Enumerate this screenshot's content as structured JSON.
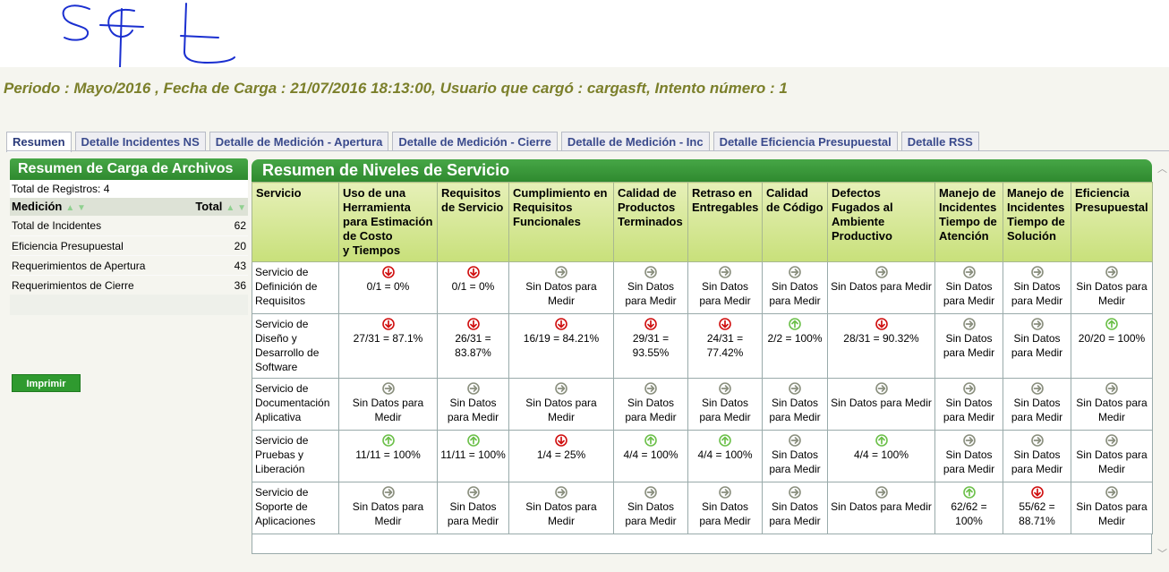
{
  "header": {
    "periodo_text": "Periodo : Mayo/2016 , Fecha de Carga : 21/07/2016 18:13:00, Usuario que cargó : cargasft, Intento número : 1"
  },
  "tabs": [
    {
      "label": "Resumen",
      "active": true
    },
    {
      "label": "Detalle Incidentes NS"
    },
    {
      "label": "Detalle de Medición - Apertura"
    },
    {
      "label": "Detalle de Medición - Cierre"
    },
    {
      "label": "Detalle de Medición - Inc"
    },
    {
      "label": "Detalle Eficiencia Presupuestal"
    },
    {
      "label": "Detalle RSS"
    }
  ],
  "left_panel": {
    "title": "Resumen de Carga de Archivos",
    "total_registros": "Total de Registros: 4",
    "col_medicion": "Medición",
    "col_total": "Total",
    "rows": [
      {
        "name": "Total de Incidentes",
        "total": "62"
      },
      {
        "name": "Eficiencia Presupuestal",
        "total": "20"
      },
      {
        "name": "Requerimientos de Apertura",
        "total": "43"
      },
      {
        "name": "Requerimientos de Cierre",
        "total": "36"
      }
    ],
    "print_label": "Imprimir"
  },
  "main_panel": {
    "title": "Resumen de Niveles de Servicio",
    "columns": [
      "Servicio",
      "Uso de una Herramienta para Estimación de Costo\ny Tiempos",
      "Requisitos de Servicio",
      "Cumplimiento en Requisitos Funcionales",
      "Calidad de Productos Terminados",
      "Retraso en Entregables",
      "Calidad de Código",
      "Defectos Fugados al Ambiente Productivo",
      "Manejo de Incidentes Tiempo de Atención",
      "Manejo de Incidentes Tiempo de Solución",
      "Eficiencia Presupuestal"
    ],
    "rows": [
      {
        "service": "Servicio de Definición de Requisitos",
        "cells": [
          {
            "icon": "red-down",
            "text": "0/1 = 0%"
          },
          {
            "icon": "red-down",
            "text": "0/1 = 0%"
          },
          {
            "icon": "gray-right",
            "text": "Sin Datos para Medir"
          },
          {
            "icon": "gray-right",
            "text": "Sin Datos para Medir"
          },
          {
            "icon": "gray-right",
            "text": "Sin Datos para Medir"
          },
          {
            "icon": "gray-right",
            "text": "Sin Datos para Medir"
          },
          {
            "icon": "gray-right",
            "text": "Sin Datos para Medir"
          },
          {
            "icon": "gray-right",
            "text": "Sin Datos para Medir"
          },
          {
            "icon": "gray-right",
            "text": "Sin Datos para Medir"
          },
          {
            "icon": "gray-right",
            "text": "Sin Datos para Medir"
          }
        ]
      },
      {
        "service": "Servicio de Diseño y Desarrollo de Software",
        "cells": [
          {
            "icon": "red-down",
            "text": "27/31 = 87.1%"
          },
          {
            "icon": "red-down",
            "text": "26/31 = 83.87%"
          },
          {
            "icon": "red-down",
            "text": "16/19 = 84.21%"
          },
          {
            "icon": "red-down",
            "text": "29/31 = 93.55%"
          },
          {
            "icon": "red-down",
            "text": "24/31 = 77.42%"
          },
          {
            "icon": "green-up",
            "text": "2/2 = 100%"
          },
          {
            "icon": "red-down",
            "text": "28/31 = 90.32%"
          },
          {
            "icon": "gray-right",
            "text": "Sin Datos para Medir"
          },
          {
            "icon": "gray-right",
            "text": "Sin Datos para Medir"
          },
          {
            "icon": "green-up",
            "text": "20/20 = 100%"
          }
        ]
      },
      {
        "service": "Servicio de Documentación Aplicativa",
        "cells": [
          {
            "icon": "gray-right",
            "text": "Sin Datos para Medir"
          },
          {
            "icon": "gray-right",
            "text": "Sin Datos para Medir"
          },
          {
            "icon": "gray-right",
            "text": "Sin Datos para Medir"
          },
          {
            "icon": "gray-right",
            "text": "Sin Datos para Medir"
          },
          {
            "icon": "gray-right",
            "text": "Sin Datos para Medir"
          },
          {
            "icon": "gray-right",
            "text": "Sin Datos para Medir"
          },
          {
            "icon": "gray-right",
            "text": "Sin Datos para Medir"
          },
          {
            "icon": "gray-right",
            "text": "Sin Datos para Medir"
          },
          {
            "icon": "gray-right",
            "text": "Sin Datos para Medir"
          },
          {
            "icon": "gray-right",
            "text": "Sin Datos para Medir"
          }
        ]
      },
      {
        "service": "Servicio de Pruebas y Liberación",
        "cells": [
          {
            "icon": "green-up",
            "text": "11/11 = 100%"
          },
          {
            "icon": "green-up",
            "text": "11/11 = 100%"
          },
          {
            "icon": "red-down",
            "text": "1/4 = 25%"
          },
          {
            "icon": "green-up",
            "text": "4/4 = 100%"
          },
          {
            "icon": "green-up",
            "text": "4/4 = 100%"
          },
          {
            "icon": "gray-right",
            "text": "Sin Datos para Medir"
          },
          {
            "icon": "green-up",
            "text": "4/4 = 100%"
          },
          {
            "icon": "gray-right",
            "text": "Sin Datos para Medir"
          },
          {
            "icon": "gray-right",
            "text": "Sin Datos para Medir"
          },
          {
            "icon": "gray-right",
            "text": "Sin Datos para Medir"
          }
        ]
      },
      {
        "service": "Servicio de Soporte de Aplicaciones",
        "cells": [
          {
            "icon": "gray-right",
            "text": "Sin Datos para Medir"
          },
          {
            "icon": "gray-right",
            "text": "Sin Datos para Medir"
          },
          {
            "icon": "gray-right",
            "text": "Sin Datos para Medir"
          },
          {
            "icon": "gray-right",
            "text": "Sin Datos para Medir"
          },
          {
            "icon": "gray-right",
            "text": "Sin Datos para Medir"
          },
          {
            "icon": "gray-right",
            "text": "Sin Datos para Medir"
          },
          {
            "icon": "gray-right",
            "text": "Sin Datos para Medir"
          },
          {
            "icon": "green-up",
            "text": "62/62 = 100%"
          },
          {
            "icon": "red-down",
            "text": "55/62 = 88.71%"
          },
          {
            "icon": "gray-right",
            "text": "Sin Datos para Medir"
          }
        ]
      }
    ]
  },
  "colors": {
    "red": "#d01010",
    "green": "#6cc04a",
    "gray": "#8a8f7e",
    "header_green": "#2f8a2f",
    "periodo_text": "#7b7f2a"
  }
}
